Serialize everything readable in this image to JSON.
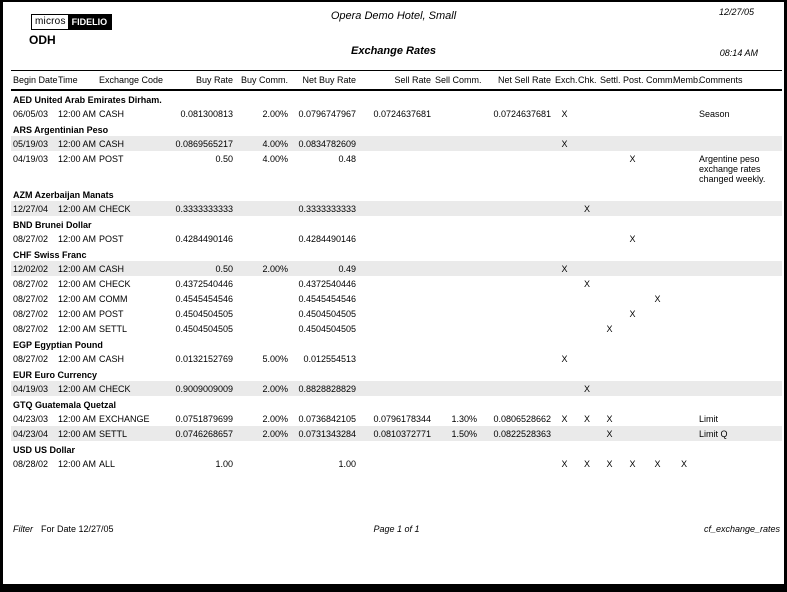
{
  "page": {
    "logo_micros": "micros",
    "logo_fidelio": "FIDELIO",
    "property_code": "ODH",
    "hotel_title": "Opera Demo Hotel, Small",
    "report_date": "12/27/05",
    "report_title": "Exchange Rates",
    "report_time": "08:14 AM"
  },
  "table": {
    "columns": [
      "Begin Date",
      "Time",
      "Exchange Code",
      "Buy Rate",
      "Buy Comm.",
      "Net Buy Rate",
      "Sell Rate",
      "Sell Comm.",
      "Net Sell Rate",
      "Exch.",
      "Chk.",
      "Settl.",
      "Post.",
      "Comm.",
      "Memb.",
      "Comments"
    ],
    "groups": [
      {
        "name": "AED United Arab Emirates Dirham.",
        "rows": [
          {
            "shaded": false,
            "cells": [
              "06/05/03",
              "12:00 AM",
              "CASH",
              "0.081300813",
              "2.00%",
              "0.0796747967",
              "0.0724637681",
              "",
              "0.0724637681",
              "X",
              "",
              "",
              "",
              "",
              "",
              "Season"
            ]
          }
        ]
      },
      {
        "name": "ARS Argentinian Peso",
        "rows": [
          {
            "shaded": true,
            "cells": [
              "05/19/03",
              "12:00 AM",
              "CASH",
              "0.0869565217",
              "4.00%",
              "0.0834782609",
              "",
              "",
              "",
              "X",
              "",
              "",
              "",
              "",
              "",
              ""
            ]
          },
          {
            "shaded": false,
            "cells": [
              "04/19/03",
              "12:00 AM",
              "POST",
              "0.50",
              "4.00%",
              "0.48",
              "",
              "",
              "",
              "",
              "",
              "",
              "X",
              "",
              "",
              "Argentine peso exchange rates changed weekly."
            ]
          }
        ]
      },
      {
        "name": "AZM Azerbaijan Manats",
        "rows": [
          {
            "shaded": true,
            "cells": [
              "12/27/04",
              "12:00 AM",
              "CHECK",
              "0.3333333333",
              "",
              "0.3333333333",
              "",
              "",
              "",
              "",
              "X",
              "",
              "",
              "",
              "",
              ""
            ]
          }
        ]
      },
      {
        "name": "BND Brunei Dollar",
        "rows": [
          {
            "shaded": false,
            "cells": [
              "08/27/02",
              "12:00 AM",
              "POST",
              "0.4284490146",
              "",
              "0.4284490146",
              "",
              "",
              "",
              "",
              "",
              "",
              "X",
              "",
              "",
              ""
            ]
          }
        ]
      },
      {
        "name": "CHF Swiss Franc",
        "rows": [
          {
            "shaded": true,
            "cells": [
              "12/02/02",
              "12:00 AM",
              "CASH",
              "0.50",
              "2.00%",
              "0.49",
              "",
              "",
              "",
              "X",
              "",
              "",
              "",
              "",
              "",
              ""
            ]
          },
          {
            "shaded": false,
            "cells": [
              "08/27/02",
              "12:00 AM",
              "CHECK",
              "0.4372540446",
              "",
              "0.4372540446",
              "",
              "",
              "",
              "",
              "X",
              "",
              "",
              "",
              "",
              ""
            ]
          },
          {
            "shaded": false,
            "cells": [
              "08/27/02",
              "12:00 AM",
              "COMM",
              "0.4545454546",
              "",
              "0.4545454546",
              "",
              "",
              "",
              "",
              "",
              "",
              "",
              "X",
              "",
              ""
            ]
          },
          {
            "shaded": false,
            "cells": [
              "08/27/02",
              "12:00 AM",
              "POST",
              "0.4504504505",
              "",
              "0.4504504505",
              "",
              "",
              "",
              "",
              "",
              "",
              "X",
              "",
              "",
              ""
            ]
          },
          {
            "shaded": false,
            "cells": [
              "08/27/02",
              "12:00 AM",
              "SETTL",
              "0.4504504505",
              "",
              "0.4504504505",
              "",
              "",
              "",
              "",
              "",
              "X",
              "",
              "",
              "",
              ""
            ]
          }
        ]
      },
      {
        "name": "EGP Egyptian Pound",
        "rows": [
          {
            "shaded": false,
            "cells": [
              "08/27/02",
              "12:00 AM",
              "CASH",
              "0.0132152769",
              "5.00%",
              "0.012554513",
              "",
              "",
              "",
              "X",
              "",
              "",
              "",
              "",
              "",
              ""
            ]
          }
        ]
      },
      {
        "name": "EUR Euro Currency",
        "rows": [
          {
            "shaded": true,
            "cells": [
              "04/19/03",
              "12:00 AM",
              "CHECK",
              "0.9009009009",
              "2.00%",
              "0.8828828829",
              "",
              "",
              "",
              "",
              "X",
              "",
              "",
              "",
              "",
              ""
            ]
          }
        ]
      },
      {
        "name": "GTQ Guatemala Quetzal",
        "rows": [
          {
            "shaded": false,
            "cells": [
              "04/23/03",
              "12:00 AM",
              "EXCHANGE",
              "0.0751879699",
              "2.00%",
              "0.0736842105",
              "0.0796178344",
              "1.30%",
              "0.0806528662",
              "X",
              "X",
              "X",
              "",
              "",
              "",
              "Limit"
            ]
          },
          {
            "shaded": true,
            "cells": [
              "04/23/04",
              "12:00 AM",
              "SETTL",
              "0.0746268657",
              "2.00%",
              "0.0731343284",
              "0.0810372771",
              "1.50%",
              "0.0822528363",
              "",
              "",
              "X",
              "",
              "",
              "",
              "Limit Q"
            ]
          }
        ]
      },
      {
        "name": "USD US Dollar",
        "rows": [
          {
            "shaded": false,
            "cells": [
              "08/28/02",
              "12:00 AM",
              "ALL",
              "1.00",
              "",
              "1.00",
              "",
              "",
              "",
              "X",
              "X",
              "X",
              "X",
              "X",
              "X",
              ""
            ]
          }
        ]
      }
    ]
  },
  "footer": {
    "filter_label": "Filter",
    "for_date": "For Date 12/27/05",
    "page_info": "Page 1 of 1",
    "report_id": "cf_exchange_rates"
  }
}
